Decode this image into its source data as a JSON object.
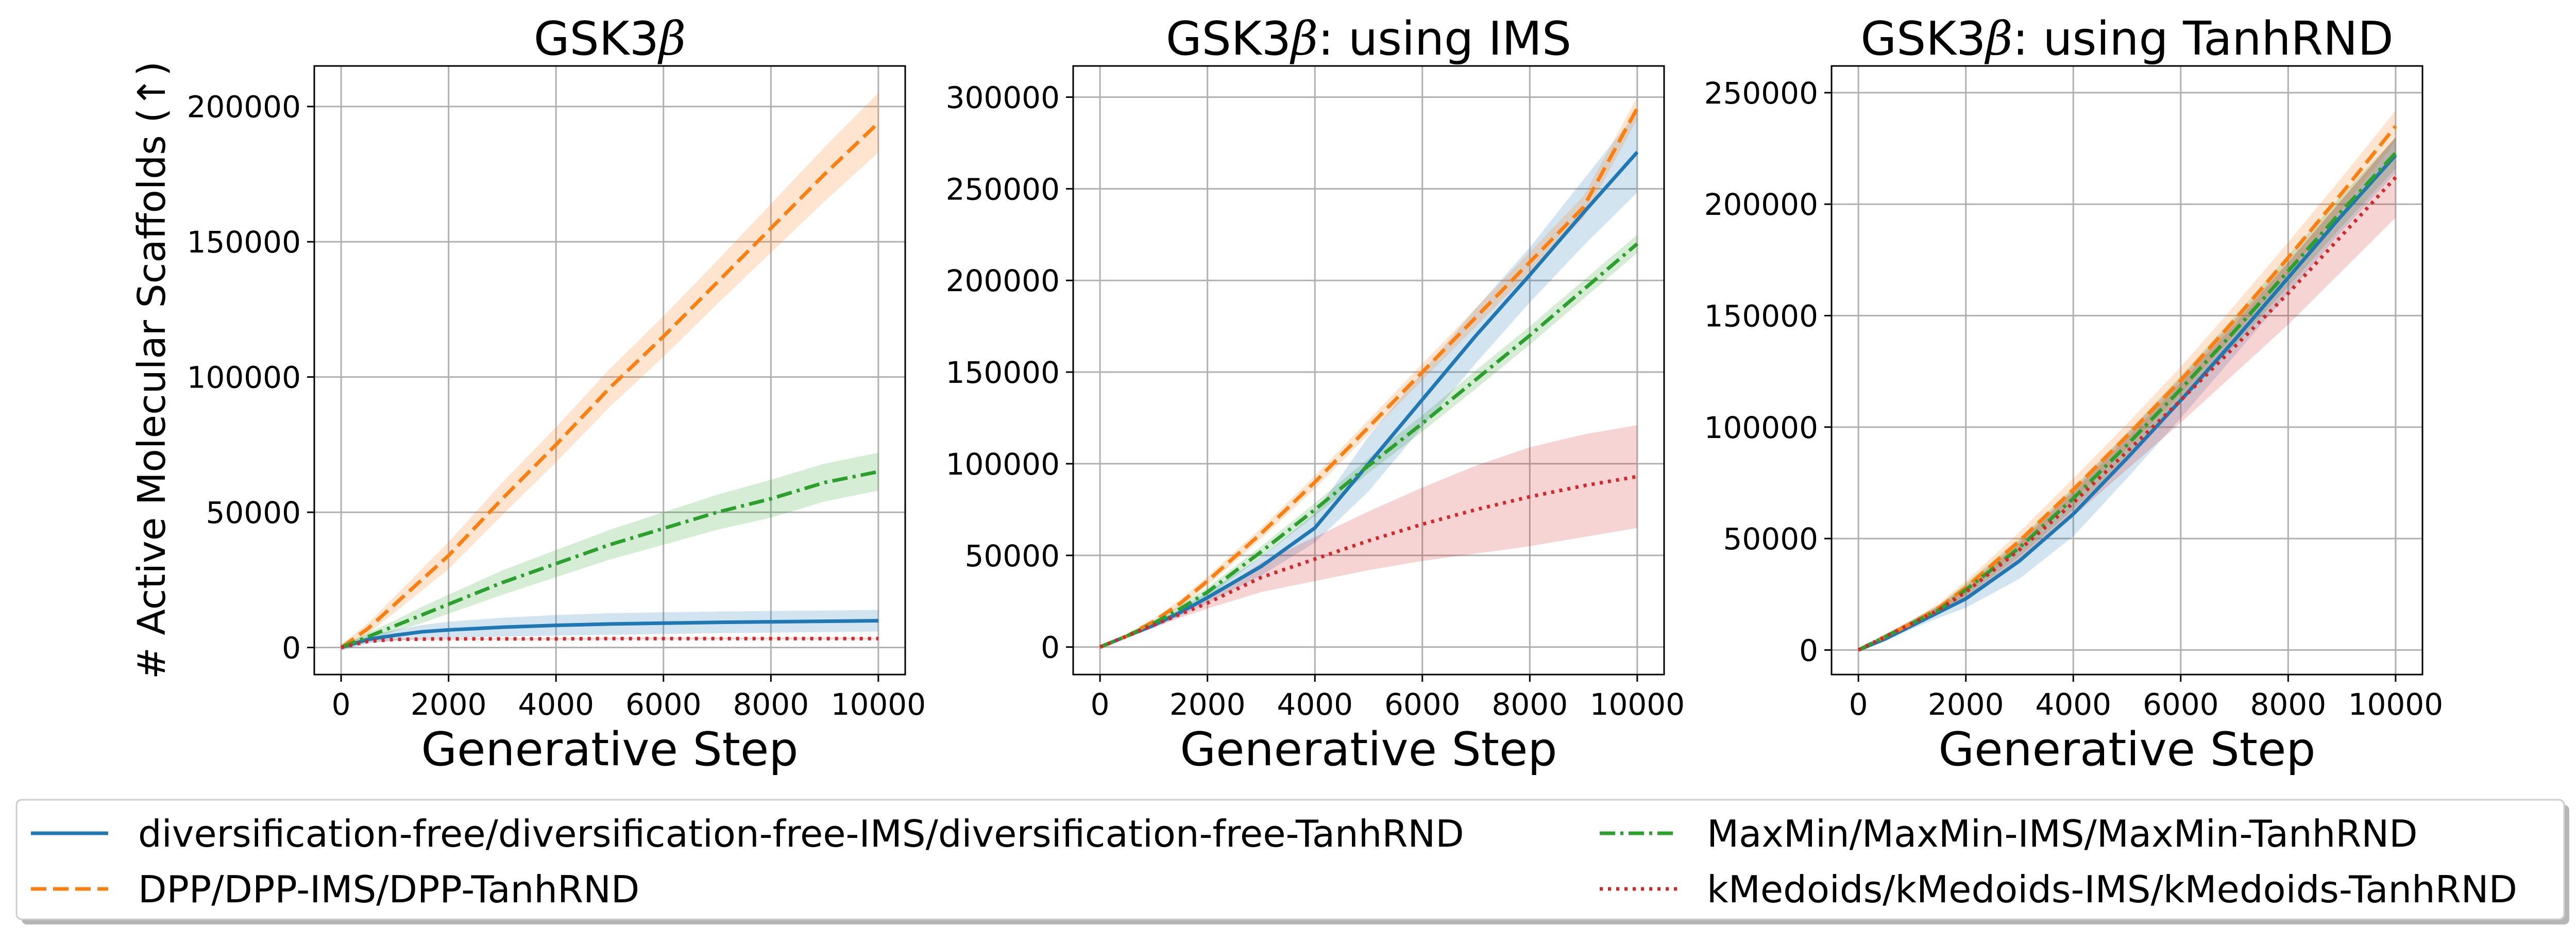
{
  "chart_data": [
    {
      "type": "line",
      "title_parts": {
        "prefix": "GSK3",
        "greek": "β",
        "suffix": ""
      },
      "xlabel": "Generative Step",
      "ylabel": "# Active Molecular Scaffolds (↑)",
      "xlim": [
        -500,
        10500
      ],
      "ylim": [
        -10000,
        215000
      ],
      "xticks": [
        0,
        2000,
        4000,
        6000,
        8000,
        10000
      ],
      "xtick_labels": [
        "0",
        "2000",
        "4000",
        "6000",
        "8000",
        "10000"
      ],
      "yticks": [
        0,
        50000,
        100000,
        150000,
        200000
      ],
      "ytick_labels": [
        "0",
        "50000",
        "100000",
        "150000",
        "200000"
      ],
      "grid": true,
      "series": [
        {
          "name": "diversification-free",
          "color": "#1f77b4",
          "style": "solid",
          "x": [
            0,
            500,
            1000,
            1500,
            2000,
            3000,
            4000,
            5000,
            6000,
            7000,
            8000,
            9000,
            10000
          ],
          "y": [
            0,
            3000,
            4500,
            5800,
            6500,
            7500,
            8200,
            8700,
            9000,
            9300,
            9500,
            9700,
            9900
          ],
          "band": [
            1200,
            1500,
            2000,
            2500,
            3000,
            3500,
            3800,
            4000,
            4000,
            4000,
            4000,
            4000,
            4000
          ]
        },
        {
          "name": "DPP",
          "color": "#ff7f0e",
          "style": "dashed",
          "x": [
            0,
            500,
            1000,
            1500,
            2000,
            3000,
            4000,
            5000,
            6000,
            7000,
            8000,
            9000,
            10000
          ],
          "y": [
            0,
            7000,
            16000,
            25000,
            34000,
            55000,
            75000,
            96000,
            115000,
            135000,
            155000,
            175000,
            194000
          ],
          "band": [
            1000,
            2000,
            3000,
            4000,
            5000,
            6000,
            6500,
            7000,
            7500,
            8000,
            9000,
            10000,
            11000
          ]
        },
        {
          "name": "MaxMin",
          "color": "#2ca02c",
          "style": "dashdot",
          "x": [
            0,
            500,
            1000,
            1500,
            2000,
            3000,
            4000,
            5000,
            6000,
            7000,
            8000,
            9000,
            10000
          ],
          "y": [
            0,
            4000,
            8000,
            12000,
            16000,
            24000,
            31000,
            38000,
            44000,
            50000,
            55000,
            61000,
            65000
          ],
          "band": [
            500,
            1500,
            2000,
            3000,
            3500,
            4500,
            5000,
            5500,
            6000,
            6500,
            7000,
            7000,
            7000
          ]
        },
        {
          "name": "kMedoids",
          "color": "#d62728",
          "style": "dotted",
          "x": [
            0,
            500,
            1000,
            1500,
            2000,
            3000,
            4000,
            5000,
            6000,
            7000,
            8000,
            9000,
            10000
          ],
          "y": [
            0,
            2300,
            3000,
            3100,
            3200,
            3200,
            3200,
            3300,
            3300,
            3300,
            3300,
            3300,
            3300
          ],
          "band": [
            300,
            300,
            300,
            300,
            300,
            300,
            300,
            300,
            300,
            300,
            300,
            300,
            300
          ]
        }
      ]
    },
    {
      "type": "line",
      "title_parts": {
        "prefix": "GSK3",
        "greek": "β",
        "suffix": ": using IMS"
      },
      "xlabel": "Generative Step",
      "ylabel": "",
      "xlim": [
        -500,
        10500
      ],
      "ylim": [
        -15000,
        317000
      ],
      "xticks": [
        0,
        2000,
        4000,
        6000,
        8000,
        10000
      ],
      "xtick_labels": [
        "0",
        "2000",
        "4000",
        "6000",
        "8000",
        "10000"
      ],
      "yticks": [
        0,
        50000,
        100000,
        150000,
        200000,
        250000,
        300000
      ],
      "ytick_labels": [
        "0",
        "50000",
        "100000",
        "150000",
        "200000",
        "250000",
        "300000"
      ],
      "grid": true,
      "series": [
        {
          "name": "diversification-free-IMS",
          "color": "#1f77b4",
          "style": "solid",
          "x": [
            0,
            500,
            1000,
            1500,
            2000,
            3000,
            4000,
            5000,
            6000,
            7000,
            8000,
            9000,
            10000
          ],
          "y": [
            0,
            6000,
            12000,
            19000,
            27000,
            44000,
            65000,
            100000,
            135000,
            170000,
            203000,
            237000,
            270000
          ],
          "band": [
            500,
            1000,
            1500,
            2000,
            3000,
            5000,
            8000,
            15000,
            15000,
            15000,
            15000,
            18000,
            22000
          ]
        },
        {
          "name": "DPP-IMS",
          "color": "#ff7f0e",
          "style": "dashed",
          "x": [
            0,
            500,
            1000,
            1500,
            2000,
            3000,
            4000,
            5000,
            6000,
            7000,
            8000,
            9000,
            10000
          ],
          "y": [
            0,
            6000,
            14000,
            24000,
            36000,
            62000,
            90000,
            120000,
            150000,
            180000,
            210000,
            240000,
            294000
          ],
          "band": [
            500,
            1000,
            1500,
            2000,
            2500,
            3000,
            3500,
            4000,
            4500,
            5000,
            5500,
            6000,
            6000
          ]
        },
        {
          "name": "MaxMin-IMS",
          "color": "#2ca02c",
          "style": "dashdot",
          "x": [
            0,
            500,
            1000,
            1500,
            2000,
            3000,
            4000,
            5000,
            6000,
            7000,
            8000,
            9000,
            10000
          ],
          "y": [
            0,
            6000,
            13000,
            21000,
            30000,
            52000,
            75000,
            99000,
            122000,
            146000,
            170000,
            195000,
            220000
          ],
          "band": [
            500,
            1000,
            1500,
            2000,
            2500,
            3000,
            3500,
            4000,
            4500,
            5000,
            5000,
            5000,
            5000
          ]
        },
        {
          "name": "kMedoids-IMS",
          "color": "#d62728",
          "style": "dotted",
          "x": [
            0,
            500,
            1000,
            1500,
            2000,
            3000,
            4000,
            5000,
            6000,
            7000,
            8000,
            9000,
            10000
          ],
          "y": [
            0,
            6000,
            12000,
            18000,
            24000,
            38000,
            48000,
            58000,
            67000,
            75000,
            82000,
            88000,
            93000
          ],
          "band": [
            500,
            1000,
            1500,
            2000,
            3000,
            8000,
            12000,
            16000,
            20000,
            24000,
            27000,
            28000,
            28000
          ]
        }
      ]
    },
    {
      "type": "line",
      "title_parts": {
        "prefix": "GSK3",
        "greek": "β",
        "suffix": ": using TanhRND"
      },
      "xlabel": "Generative Step",
      "ylabel": "",
      "xlim": [
        -500,
        10500
      ],
      "ylim": [
        -11000,
        262000
      ],
      "xticks": [
        0,
        2000,
        4000,
        6000,
        8000,
        10000
      ],
      "xtick_labels": [
        "0",
        "2000",
        "4000",
        "6000",
        "8000",
        "10000"
      ],
      "yticks": [
        0,
        50000,
        100000,
        150000,
        200000,
        250000
      ],
      "ytick_labels": [
        "0",
        "50000",
        "100000",
        "150000",
        "200000",
        "250000"
      ],
      "grid": true,
      "series": [
        {
          "name": "diversification-free-TanhRND",
          "color": "#1f77b4",
          "style": "solid",
          "x": [
            0,
            500,
            1000,
            1500,
            2000,
            3000,
            4000,
            5000,
            6000,
            7000,
            8000,
            9000,
            10000
          ],
          "y": [
            0,
            5000,
            11000,
            17000,
            23000,
            40000,
            61000,
            86000,
            112000,
            139000,
            167000,
            195000,
            222000
          ],
          "band": [
            500,
            1000,
            1500,
            2500,
            4000,
            8000,
            10000,
            9000,
            8000,
            7000,
            7000,
            7000,
            8000
          ]
        },
        {
          "name": "DPP-TanhRND",
          "color": "#ff7f0e",
          "style": "dashed",
          "x": [
            0,
            500,
            1000,
            1500,
            2000,
            3000,
            4000,
            5000,
            6000,
            7000,
            8000,
            9000,
            10000
          ],
          "y": [
            0,
            6000,
            12000,
            19000,
            28000,
            49000,
            72000,
            96000,
            121000,
            148000,
            176000,
            205000,
            235000
          ],
          "band": [
            500,
            1000,
            1500,
            2000,
            3000,
            4000,
            5000,
            5500,
            6000,
            6500,
            7000,
            7000,
            7000
          ]
        },
        {
          "name": "MaxMin-TanhRND",
          "color": "#2ca02c",
          "style": "dashdot",
          "x": [
            0,
            500,
            1000,
            1500,
            2000,
            3000,
            4000,
            5000,
            6000,
            7000,
            8000,
            9000,
            10000
          ],
          "y": [
            0,
            6000,
            12000,
            18000,
            27000,
            46000,
            68000,
            92000,
            117000,
            143000,
            170000,
            197000,
            223000
          ],
          "band": [
            500,
            1000,
            1500,
            2000,
            3000,
            4000,
            5000,
            5500,
            6000,
            6500,
            7000,
            7000,
            7000
          ]
        },
        {
          "name": "kMedoids-TanhRND",
          "color": "#d62728",
          "style": "dotted",
          "x": [
            0,
            500,
            1000,
            1500,
            2000,
            3000,
            4000,
            5000,
            6000,
            7000,
            8000,
            9000,
            10000
          ],
          "y": [
            0,
            6000,
            12000,
            18000,
            26000,
            45000,
            66000,
            89000,
            112000,
            136000,
            160000,
            186000,
            212000
          ],
          "band": [
            500,
            1000,
            1500,
            2000,
            3000,
            4000,
            6000,
            8000,
            10000,
            12000,
            14000,
            16000,
            18000
          ]
        }
      ]
    }
  ],
  "legend": {
    "placement": "bottom",
    "entries": [
      {
        "label": "diversification-free/diversification-free-IMS/diversification-free-TanhRND",
        "color": "#1f77b4",
        "style": "solid"
      },
      {
        "label": "DPP/DPP-IMS/DPP-TanhRND",
        "color": "#ff7f0e",
        "style": "dashed"
      },
      {
        "label": "MaxMin/MaxMin-IMS/MaxMin-TanhRND",
        "color": "#2ca02c",
        "style": "dashdot"
      },
      {
        "label": "kMedoids/kMedoids-IMS/kMedoids-TanhRND",
        "color": "#d62728",
        "style": "dotted"
      }
    ]
  }
}
